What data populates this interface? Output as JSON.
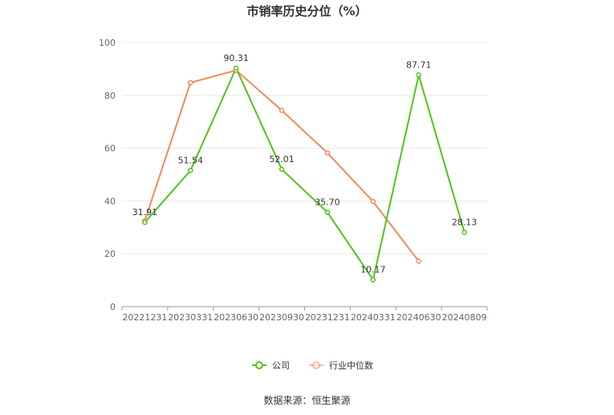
{
  "title": "市销率历史分位（%）",
  "source": "数据来源：恒生聚源",
  "chart_data": {
    "type": "line",
    "title": "市销率历史分位（%）",
    "categories": [
      "20221231",
      "20230331",
      "20230630",
      "20230930",
      "20231231",
      "20240331",
      "20240630",
      "20240809"
    ],
    "ylim": [
      0,
      100
    ],
    "yticks": [
      0,
      20,
      40,
      60,
      80,
      100
    ],
    "grid": true,
    "legend_position": "bottom",
    "series": [
      {
        "name": "公司",
        "color": "#52c41a",
        "values": [
          31.91,
          51.54,
          90.31,
          52.01,
          35.7,
          10.17,
          87.71,
          28.13
        ],
        "labels": [
          "31.91",
          "51.54",
          "90.31",
          "52.01",
          "35.70",
          "10.17",
          "87.71",
          "28.13"
        ]
      },
      {
        "name": "行业中位数",
        "color": "#f08a5d",
        "values": [
          32.5,
          84.8,
          89.5,
          74.3,
          58.2,
          39.8,
          17.2,
          null
        ]
      }
    ]
  }
}
